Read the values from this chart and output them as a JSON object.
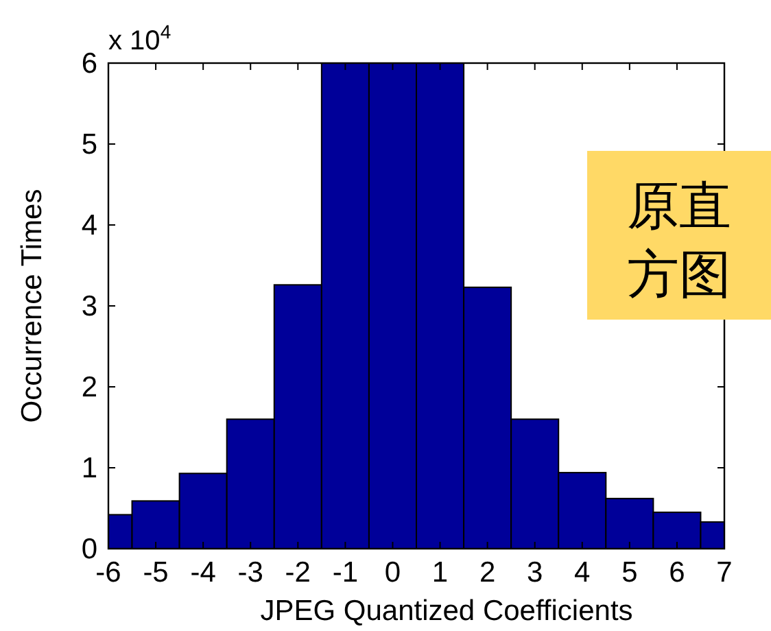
{
  "chart_data": {
    "type": "bar",
    "xlabel": "JPEG Quantized Coefficients",
    "ylabel": "Occurrence Times",
    "x": [
      -6,
      -5,
      -4,
      -3,
      -2,
      -1,
      0,
      1,
      2,
      3,
      4,
      5,
      6,
      7
    ],
    "values": [
      0.42,
      0.59,
      0.93,
      1.6,
      3.26,
      6,
      6,
      6,
      3.23,
      1.6,
      0.94,
      0.62,
      0.45,
      0.33
    ],
    "color": "#000099",
    "xlim": [
      -6,
      7
    ],
    "xticks": [
      -6,
      -5,
      -4,
      -3,
      -2,
      -1,
      0,
      1,
      2,
      3,
      4,
      5,
      6,
      7
    ],
    "ylim": [
      0,
      6
    ],
    "yticks": [
      0,
      1,
      2,
      3,
      4,
      5,
      6
    ],
    "annotations": [
      "x 10$^{4}$",
      "原直方图"
    ],
    "grid": false
  }
}
